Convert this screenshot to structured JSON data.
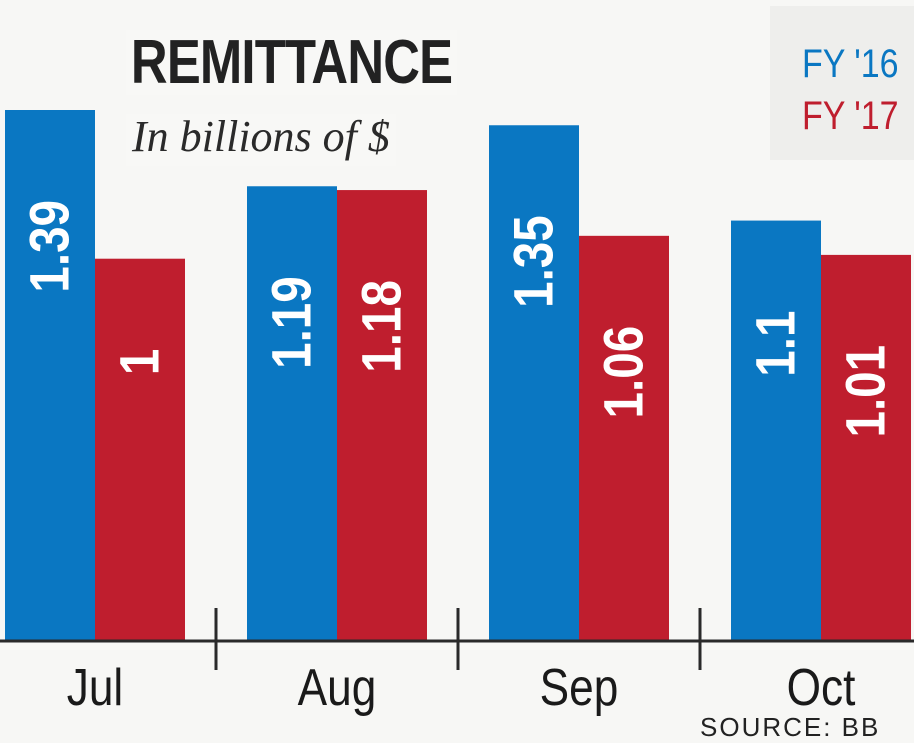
{
  "chart_data": {
    "type": "bar",
    "title": "REMITTANCE",
    "subtitle": "In billions of $",
    "categories": [
      "Jul",
      "Aug",
      "Sep",
      "Oct"
    ],
    "series": [
      {
        "name": "FY '16",
        "color": "#0a77c2",
        "values": [
          1.39,
          1.19,
          1.35,
          1.1
        ]
      },
      {
        "name": "FY '17",
        "color": "#bf1e2e",
        "values": [
          1,
          1.18,
          1.06,
          1.01
        ]
      }
    ],
    "value_labels": [
      [
        "1.39",
        "1.19",
        "1.35",
        "1.1"
      ],
      [
        "1",
        "1.18",
        "1.06",
        "1.01"
      ]
    ],
    "legend_position": "top-right",
    "grid": false,
    "ylim": [
      0,
      1.39
    ],
    "source": "SOURCE: BB"
  }
}
